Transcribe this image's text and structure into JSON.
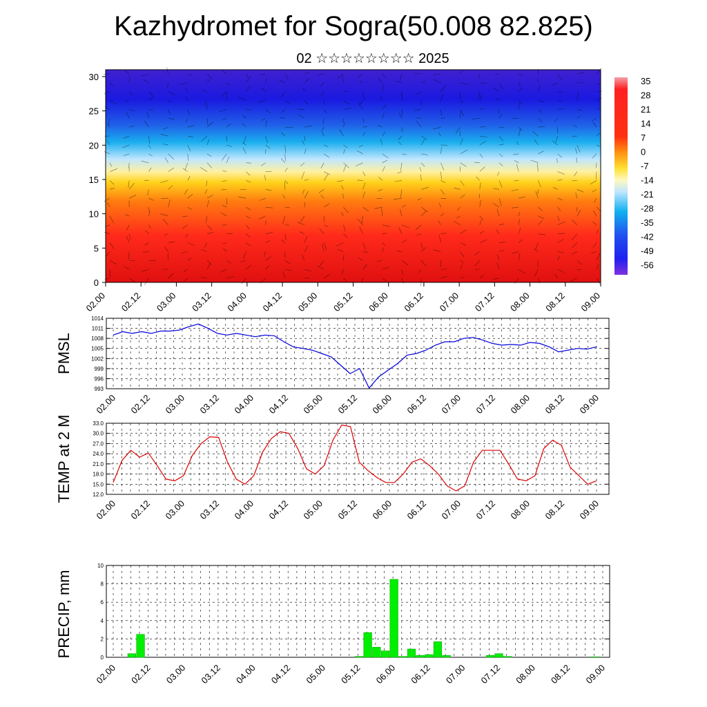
{
  "title": "Kazhydromet for Sogra(50.008 82.825)",
  "subtitle": "02 ☆☆☆☆☆☆☆☆ 2025",
  "time_labels": [
    "02.00",
    "02.12",
    "03.00",
    "03.12",
    "04.00",
    "04.12",
    "05.00",
    "05.12",
    "06.00",
    "06.12",
    "07.00",
    "07.12",
    "08.00",
    "08.12",
    "09.00"
  ],
  "chart_data": [
    {
      "type": "heatmap",
      "ylim": [
        0,
        31
      ],
      "yticks": [
        "0",
        "5",
        "10",
        "15",
        "20",
        "25",
        "30"
      ],
      "colorbar_labels": [
        "35",
        "28",
        "21",
        "14",
        "7",
        "0",
        "-7",
        "-14",
        "-21",
        "-28",
        "-35",
        "-42",
        "-49",
        "-56"
      ]
    },
    {
      "type": "line",
      "ylabel": "PMSL",
      "ylim": [
        993,
        1014
      ],
      "yticks": [
        "1014",
        "1011",
        "1008",
        "1005",
        "1002",
        "999",
        "996",
        "993"
      ],
      "color": "#0000dd",
      "values": [
        1009,
        1010,
        1009.5,
        1010,
        1009.5,
        1010.2,
        1010.2,
        1010.5,
        1011.5,
        1012.3,
        1011,
        1009.5,
        1009,
        1009.5,
        1009,
        1008.5,
        1009,
        1008.8,
        1007,
        1005.5,
        1005,
        1004.5,
        1003.5,
        1002.5,
        1000,
        997.5,
        999,
        993.2,
        996.5,
        998.5,
        1000.5,
        1003,
        1003.5,
        1004.5,
        1006,
        1007,
        1007,
        1008,
        1008.3,
        1007.5,
        1006.5,
        1006,
        1006.2,
        1006,
        1006.8,
        1006.5,
        1005.5,
        1004,
        1004.5,
        1005,
        1004.8,
        1005.5
      ]
    },
    {
      "type": "line",
      "ylabel": "TEMP at 2 M",
      "ylim": [
        12,
        33
      ],
      "yticks": [
        "33.0",
        "30.0",
        "27.0",
        "24.0",
        "21.0",
        "18.0",
        "15.0",
        "12.0"
      ],
      "color": "#dd0000",
      "values": [
        15.5,
        22,
        25,
        23,
        24.2,
        20.5,
        16.5,
        16,
        17.5,
        23.5,
        27,
        29,
        28.8,
        21.5,
        16.5,
        15,
        17.5,
        24.5,
        28.5,
        30.5,
        30,
        25.5,
        19.5,
        18,
        20.5,
        28,
        32.5,
        32,
        21.5,
        19,
        17,
        15.5,
        15.5,
        18,
        21.5,
        22.5,
        20.5,
        18,
        14.5,
        13,
        14.5,
        21.5,
        25,
        25,
        25,
        21,
        16.5,
        16,
        17.5,
        25.5,
        28,
        26.5,
        20,
        17.5,
        15,
        16
      ]
    },
    {
      "type": "bar",
      "ylabel": "PRECIP, mm",
      "ylim": [
        0,
        10
      ],
      "yticks": [
        "10",
        "8",
        "6",
        "4",
        "2",
        "0"
      ],
      "color": "#00ee00",
      "bars": [
        [
          2,
          0.4
        ],
        [
          3,
          2.5
        ],
        [
          28,
          0.1
        ],
        [
          29,
          2.7
        ],
        [
          30,
          1.1
        ],
        [
          31,
          0.7
        ],
        [
          32,
          8.5
        ],
        [
          33,
          0.1
        ],
        [
          34,
          0.9
        ],
        [
          35,
          0.2
        ],
        [
          36,
          0.3
        ],
        [
          37,
          1.7
        ],
        [
          38,
          0.2
        ],
        [
          43,
          0.2
        ],
        [
          44,
          0.4
        ],
        [
          45,
          0.1
        ],
        [
          55,
          0.05
        ]
      ]
    }
  ]
}
